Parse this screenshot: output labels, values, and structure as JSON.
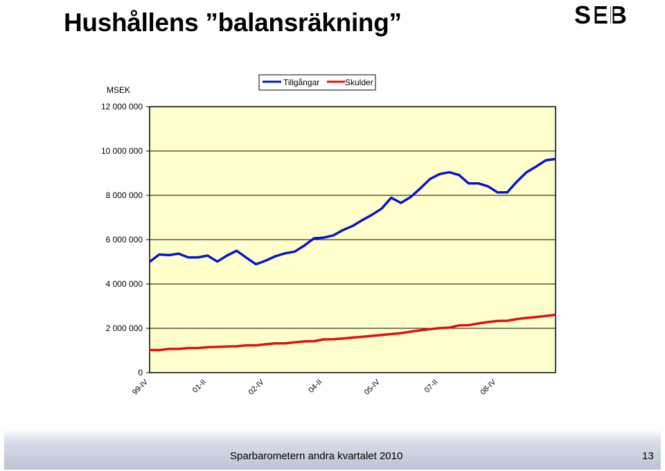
{
  "slide": {
    "title": "Hushållens ”balansräkning”",
    "logo_text": "SEB",
    "footer": "Sparbarometern andra kvartalet 2010",
    "page_number": "13"
  },
  "colors": {
    "plot_background": "#ffffcc",
    "assets": "#0a14cc",
    "debts": "#e01010"
  },
  "chart_data": {
    "type": "line",
    "ylabel": "MSEK",
    "ylim": [
      0,
      12000000
    ],
    "yticks": [
      "0",
      "2 000 000",
      "4 000 000",
      "6 000 000",
      "8 000 000",
      "10 000 000",
      "12 000 000"
    ],
    "ytick_values": [
      0,
      2000000,
      4000000,
      6000000,
      8000000,
      10000000,
      12000000
    ],
    "xtick_labels": [
      "99-IV",
      "01-II",
      "02-IV",
      "04-II",
      "05-IV",
      "07-II",
      "08-IV"
    ],
    "xtick_index": [
      0,
      6,
      12,
      18,
      24,
      30,
      36
    ],
    "legend_position": "top",
    "grid": true,
    "series": [
      {
        "name": "Tillgångar",
        "color": "#0a14cc",
        "values": [
          5000000,
          5330000,
          5300000,
          5370000,
          5200000,
          5200000,
          5280000,
          5010000,
          5280000,
          5500000,
          5190000,
          4890000,
          5050000,
          5250000,
          5380000,
          5460000,
          5730000,
          6060000,
          6090000,
          6190000,
          6430000,
          6620000,
          6880000,
          7120000,
          7400000,
          7890000,
          7660000,
          7920000,
          8310000,
          8730000,
          8960000,
          9040000,
          8920000,
          8540000,
          8540000,
          8410000,
          8130000,
          8130000,
          8620000,
          9040000,
          9300000,
          9580000,
          9640000
        ]
      },
      {
        "name": "Skulder",
        "color": "#e01010",
        "values": [
          1020000,
          1020000,
          1070000,
          1070000,
          1110000,
          1110000,
          1150000,
          1160000,
          1180000,
          1190000,
          1230000,
          1230000,
          1280000,
          1320000,
          1320000,
          1370000,
          1410000,
          1420000,
          1500000,
          1510000,
          1540000,
          1580000,
          1620000,
          1660000,
          1700000,
          1740000,
          1780000,
          1850000,
          1910000,
          1960000,
          2010000,
          2030000,
          2130000,
          2140000,
          2220000,
          2280000,
          2330000,
          2340000,
          2420000,
          2470000,
          2510000,
          2560000,
          2610000
        ]
      }
    ]
  }
}
